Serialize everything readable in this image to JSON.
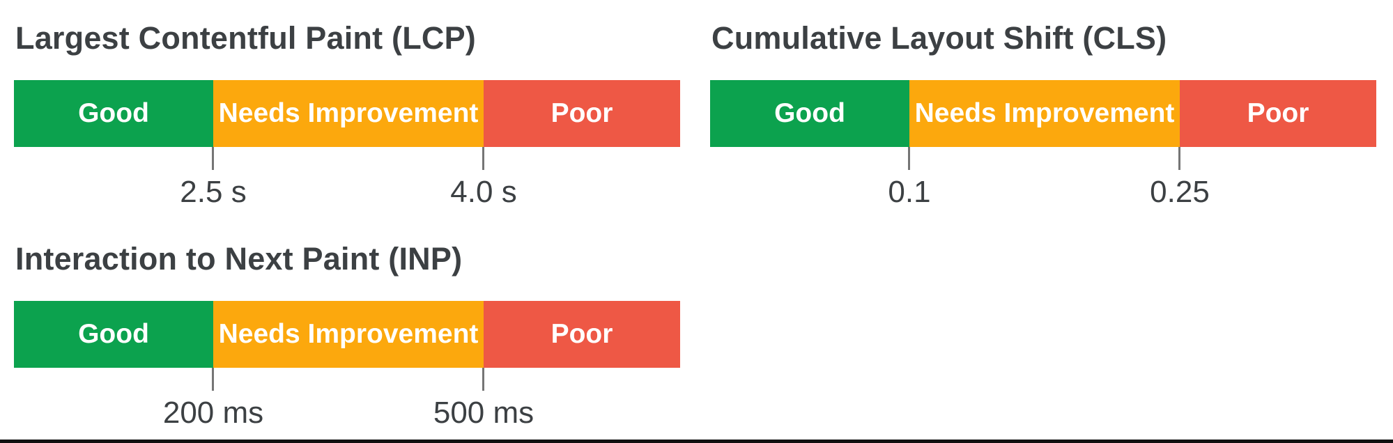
{
  "colors": {
    "good": "#0CA24E",
    "needs_improvement": "#FCA80D",
    "poor": "#EE5845",
    "title_text": "#3C4043",
    "threshold_text": "#3C4043",
    "tick": "#757575",
    "bar_label_text": "#FFFFFF",
    "bottom_rule": "#101010"
  },
  "sections": {
    "lcp": {
      "title": "Largest Contentful Paint (LCP)",
      "segments": {
        "good": "Good",
        "needs_improvement": "Needs Improvement",
        "poor": "Poor"
      },
      "thresholds": [
        "2.5 s",
        "4.0 s"
      ]
    },
    "cls": {
      "title": "Cumulative Layout Shift (CLS)",
      "segments": {
        "good": "Good",
        "needs_improvement": "Needs Improvement",
        "poor": "Poor"
      },
      "thresholds": [
        "0.1",
        "0.25"
      ]
    },
    "inp": {
      "title": "Interaction to Next Paint (INP)",
      "segments": {
        "good": "Good",
        "needs_improvement": "Needs Improvement",
        "poor": "Poor"
      },
      "thresholds": [
        "200 ms",
        "500 ms"
      ]
    }
  }
}
